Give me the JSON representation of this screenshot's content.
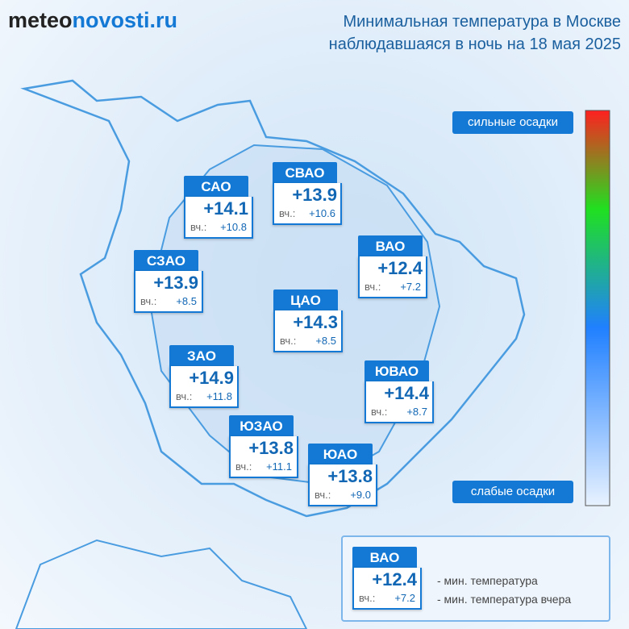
{
  "header": {
    "logo": {
      "prefix": "meteo",
      "suffix": "novosti.ru"
    },
    "title_lines": [
      "Минимальная температура в Москве",
      "наблюдавшаяся в ночь на 18 мая 2025"
    ]
  },
  "scale": {
    "top_label": "сильные осадки",
    "bottom_label": "слабые осадки"
  },
  "districts": [
    {
      "name": "САО",
      "temp": "+14.1",
      "prev_label": "вч.:",
      "prev": "+10.8"
    },
    {
      "name": "СВАО",
      "temp": "+13.9",
      "prev_label": "вч.:",
      "prev": "+10.6"
    },
    {
      "name": "СЗАО",
      "temp": "+13.9",
      "prev_label": "вч.:",
      "prev": "+8.5"
    },
    {
      "name": "ВАО",
      "temp": "+12.4",
      "prev_label": "вч.:",
      "prev": "+7.2"
    },
    {
      "name": "ЦАО",
      "temp": "+14.3",
      "prev_label": "вч.:",
      "prev": "+8.5"
    },
    {
      "name": "ЗАО",
      "temp": "+14.9",
      "prev_label": "вч.:",
      "prev": "+11.8"
    },
    {
      "name": "ЮВАО",
      "temp": "+14.4",
      "prev_label": "вч.:",
      "prev": "+8.7"
    },
    {
      "name": "ЮЗАО",
      "temp": "+13.8",
      "prev_label": "вч.:",
      "prev": "+11.1"
    },
    {
      "name": "ЮАО",
      "temp": "+13.8",
      "prev_label": "вч.:",
      "prev": "+9.0"
    }
  ],
  "key": {
    "name": "ВАО",
    "temp": "+12.4",
    "prev_label": "вч.:",
    "prev": "+7.2",
    "desc_temp": "- мин. температура",
    "desc_prev": "- мин. температура вчера"
  }
}
